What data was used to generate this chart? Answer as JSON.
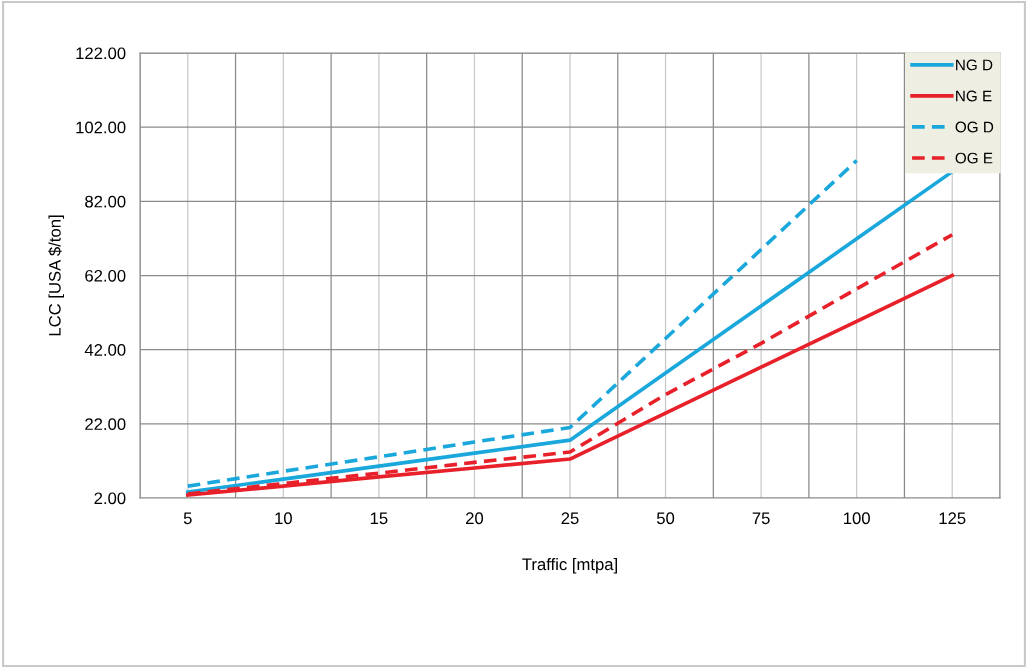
{
  "chart_data": {
    "type": "line",
    "xlabel": "Traffic [mtpa]",
    "ylabel": "LCC [USA $/ton]",
    "categories": [
      "5",
      "10",
      "15",
      "20",
      "25",
      "50",
      "75",
      "100",
      "125"
    ],
    "series": [
      {
        "name": "NG D",
        "color": "#1aa7dc",
        "line_style": "solid",
        "values": [
          3.6,
          7.1,
          10.6,
          14.1,
          17.6,
          35.7,
          53.8,
          71.9,
          90
        ]
      },
      {
        "name": "NG E",
        "color": "#e8202a",
        "line_style": "solid",
        "values": [
          2.8,
          5.2,
          7.7,
          10.1,
          12.5,
          24.9,
          37.3,
          49.6,
          62
        ]
      },
      {
        "name": "OG D",
        "color": "#1aa7dc",
        "line_style": "dashed",
        "values": [
          5.2,
          9.2,
          13.1,
          17.1,
          21,
          45,
          69,
          93,
          null
        ]
      },
      {
        "name": "OG E",
        "color": "#e8202a",
        "line_style": "dashed",
        "values": [
          3.1,
          5.9,
          8.7,
          11.6,
          14.4,
          29.9,
          43.7,
          58.4,
          73
        ]
      }
    ],
    "ylim": [
      2,
      122
    ],
    "yticks": [
      {
        "value": 2,
        "label": "2.00"
      },
      {
        "value": 22,
        "label": "22.00"
      },
      {
        "value": 42,
        "label": "42.00"
      },
      {
        "value": 62,
        "label": "62.00"
      },
      {
        "value": 82,
        "label": "82.00"
      },
      {
        "value": 102,
        "label": "102.00"
      },
      {
        "value": 122,
        "label": "122.00"
      }
    ],
    "grid": true,
    "legend": "top right",
    "marker": "none"
  }
}
